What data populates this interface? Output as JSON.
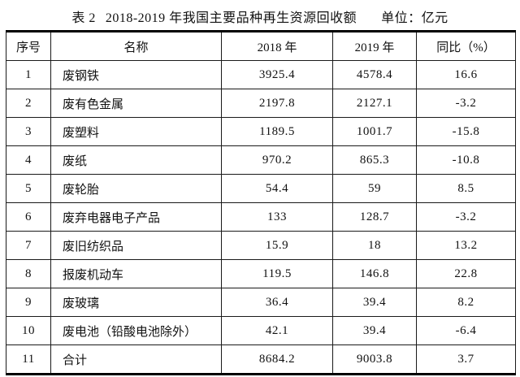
{
  "page": {
    "table_label": "表 2",
    "title": "2018-2019 年我国主要品种再生资源回收额",
    "unit": "单位：亿元"
  },
  "table": {
    "columns": [
      "序号",
      "名称",
      "2018 年",
      "2019 年",
      "同比（%）"
    ],
    "rows": [
      {
        "no": "1",
        "name": "废钢铁",
        "y2018": "3925.4",
        "y2019": "4578.4",
        "yoy": "16.6"
      },
      {
        "no": "2",
        "name": "废有色金属",
        "y2018": "2197.8",
        "y2019": "2127.1",
        "yoy": "-3.2"
      },
      {
        "no": "3",
        "name": "废塑料",
        "y2018": "1189.5",
        "y2019": "1001.7",
        "yoy": "-15.8"
      },
      {
        "no": "4",
        "name": "废纸",
        "y2018": "970.2",
        "y2019": "865.3",
        "yoy": "-10.8"
      },
      {
        "no": "5",
        "name": "废轮胎",
        "y2018": "54.4",
        "y2019": "59",
        "yoy": "8.5"
      },
      {
        "no": "6",
        "name": "废弃电器电子产品",
        "y2018": "133",
        "y2019": "128.7",
        "yoy": "-3.2"
      },
      {
        "no": "7",
        "name": "废旧纺织品",
        "y2018": "15.9",
        "y2019": "18",
        "yoy": "13.2"
      },
      {
        "no": "8",
        "name": "报废机动车",
        "y2018": "119.5",
        "y2019": "146.8",
        "yoy": "22.8"
      },
      {
        "no": "9",
        "name": "废玻璃",
        "y2018": "36.4",
        "y2019": "39.4",
        "yoy": "8.2"
      },
      {
        "no": "10",
        "name": "废电池（铅酸电池除外）",
        "y2018": "42.1",
        "y2019": "39.4",
        "yoy": "-6.4"
      },
      {
        "no": "11",
        "name": "合计",
        "y2018": "8684.2",
        "y2019": "9003.8",
        "yoy": "3.7"
      }
    ]
  },
  "colors": {
    "text": "#111111",
    "border": "#000000",
    "background": "#ffffff"
  }
}
